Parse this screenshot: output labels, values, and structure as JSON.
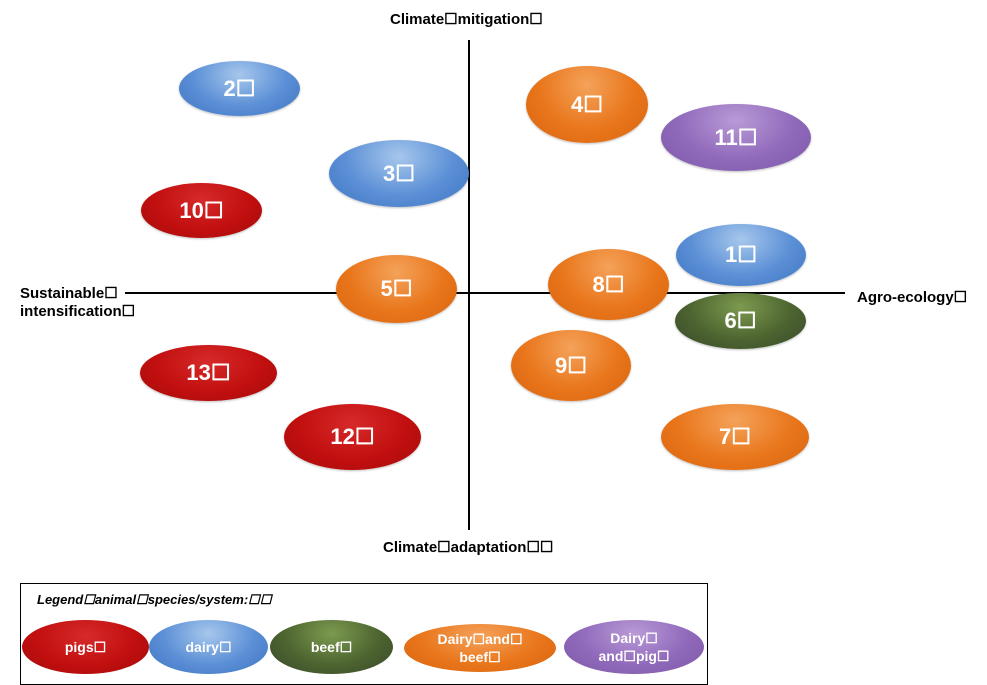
{
  "axes": {
    "top": "Climate☐mitigation☐",
    "bottom": "Climate☐adaptation☐☐",
    "left_line1": "Sustainable☐",
    "left_line2": "intensification☐",
    "right": "Agro-ecology☐"
  },
  "bubbles": [
    {
      "label": "2☐",
      "system": "dairy"
    },
    {
      "label": "4☐",
      "system": "dairy and beef"
    },
    {
      "label": "11☐",
      "system": "dairy and pig"
    },
    {
      "label": "3☐",
      "system": "dairy"
    },
    {
      "label": "10☐",
      "system": "pigs"
    },
    {
      "label": "1☐",
      "system": "dairy"
    },
    {
      "label": "5☐",
      "system": "dairy and beef"
    },
    {
      "label": "8☐",
      "system": "dairy and beef"
    },
    {
      "label": "6☐",
      "system": "beef"
    },
    {
      "label": "9☐",
      "system": "dairy and beef"
    },
    {
      "label": "13☐",
      "system": "pigs"
    },
    {
      "label": "12☐",
      "system": "pigs"
    },
    {
      "label": "7☐",
      "system": "dairy and beef"
    }
  ],
  "legend": {
    "title": "Legend☐animal☐species/system:☐☐",
    "items": [
      {
        "line1": "pigs☐",
        "line2": "",
        "color": "#c20f0f"
      },
      {
        "line1": "dairy☐",
        "line2": "",
        "color": "#5b8fd6"
      },
      {
        "line1": "beef☐",
        "line2": "",
        "color": "#4d6430"
      },
      {
        "line1": "Dairy☐and☐",
        "line2": "beef☐",
        "color": "#e9761b"
      },
      {
        "line1": "Dairy☐",
        "line2": "and☐pig☐",
        "color": "#9069bb"
      }
    ]
  }
}
